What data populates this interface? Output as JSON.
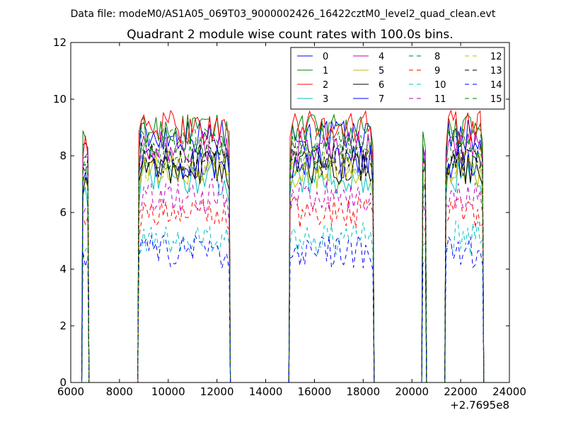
{
  "chart_data": {
    "type": "line",
    "suptitle": "Data file: modeM0/AS1A05_069T03_9000002426_16422cztM0_level2_quad_clean.evt",
    "title": "Quadrant 2 module wise count rates with 100.0s bins.",
    "xlabel": "",
    "ylabel": "",
    "x_offset_label": "+2.7695e8",
    "xlim": [
      6000,
      24000
    ],
    "ylim": [
      0,
      12
    ],
    "x_ticks": [
      6000,
      8000,
      10000,
      12000,
      14000,
      16000,
      18000,
      20000,
      22000,
      24000
    ],
    "y_ticks": [
      0,
      2,
      4,
      6,
      8,
      10,
      12
    ],
    "grid": false,
    "legend_position": "top-right",
    "legend_columns": 4,
    "segments": [
      {
        "x_start": 6500,
        "x_end": 6700
      },
      {
        "x_start": 8800,
        "x_end": 12500
      },
      {
        "x_start": 15000,
        "x_end": 18400
      },
      {
        "x_start": 20450,
        "x_end": 20550
      },
      {
        "x_start": 21400,
        "x_end": 22900
      }
    ],
    "series": [
      {
        "name": "0",
        "color": "#0000ff",
        "dash": "solid",
        "level": 8.7
      },
      {
        "name": "1",
        "color": "#008000",
        "dash": "solid",
        "level": 8.9
      },
      {
        "name": "2",
        "color": "#ff0000",
        "dash": "solid",
        "level": 9.0
      },
      {
        "name": "3",
        "color": "#00bfbf",
        "dash": "solid",
        "level": 7.2
      },
      {
        "name": "4",
        "color": "#bf00bf",
        "dash": "solid",
        "level": 8.3
      },
      {
        "name": "5",
        "color": "#bfbf00",
        "dash": "solid",
        "level": 7.4
      },
      {
        "name": "6",
        "color": "#000000",
        "dash": "solid",
        "level": 7.6
      },
      {
        "name": "7",
        "color": "#0000ff",
        "dash": "solid",
        "level": 7.8
      },
      {
        "name": "8",
        "color": "#008000",
        "dash": "dashed",
        "level": 8.1
      },
      {
        "name": "9",
        "color": "#ff0000",
        "dash": "dashed",
        "level": 6.0
      },
      {
        "name": "10",
        "color": "#00bfbf",
        "dash": "dashed",
        "level": 5.1
      },
      {
        "name": "11",
        "color": "#bf00bf",
        "dash": "dashed",
        "level": 6.6
      },
      {
        "name": "12",
        "color": "#bfbf00",
        "dash": "dashed",
        "level": 7.7
      },
      {
        "name": "13",
        "color": "#000000",
        "dash": "dashed",
        "level": 7.9
      },
      {
        "name": "14",
        "color": "#0000ff",
        "dash": "dashed",
        "level": 4.6
      },
      {
        "name": "15",
        "color": "#008000",
        "dash": "dashed",
        "level": 8.5
      }
    ]
  }
}
